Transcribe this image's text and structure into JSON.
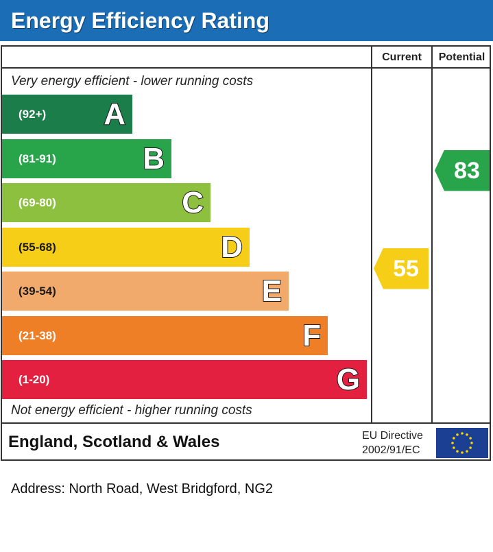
{
  "header": {
    "title": "Energy Efficiency Rating",
    "color": "#1b6db6"
  },
  "columns": {
    "current": "Current",
    "potential": "Potential"
  },
  "notes": {
    "top": "Very energy efficient - lower running costs",
    "bottom": "Not energy efficient - higher running costs"
  },
  "chart_data": {
    "type": "bar",
    "title": "Energy Efficiency Rating",
    "categories": [
      "A",
      "B",
      "C",
      "D",
      "E",
      "F",
      "G"
    ],
    "bands": [
      {
        "letter": "A",
        "range": "(92+)",
        "color": "#1a7d4a"
      },
      {
        "letter": "B",
        "range": "(81-91)",
        "color": "#28a54b"
      },
      {
        "letter": "C",
        "range": "(69-80)",
        "color": "#8dc03f"
      },
      {
        "letter": "D",
        "range": "(55-68)",
        "color": "#f6cd17"
      },
      {
        "letter": "E",
        "range": "(39-54)",
        "color": "#f2aa6c"
      },
      {
        "letter": "F",
        "range": "(21-38)",
        "color": "#ee7f27"
      },
      {
        "letter": "G",
        "range": "(1-20)",
        "color": "#e3203f"
      }
    ],
    "series": [
      {
        "name": "Current",
        "value": 55,
        "band": "D",
        "color": "#f6cd17"
      },
      {
        "name": "Potential",
        "value": 83,
        "band": "B",
        "color": "#28a54b"
      }
    ]
  },
  "footer": {
    "region": "England, Scotland & Wales",
    "directive_line1": "EU Directive",
    "directive_line2": "2002/91/EC"
  },
  "address": "Address: North Road, West Bridgford, NG2"
}
